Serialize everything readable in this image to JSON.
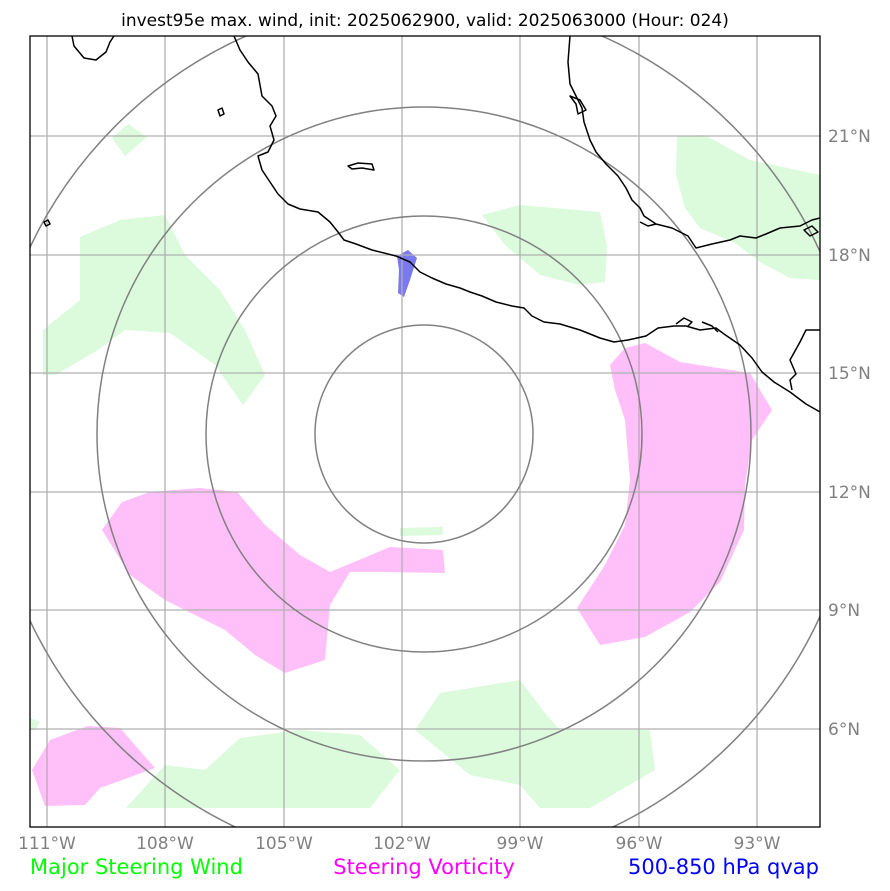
{
  "title": "invest95e max. wind, init: 2025062900, valid: 2025063000 (Hour: 024)",
  "lon_ticks": [
    "111°W",
    "108°W",
    "105°W",
    "102°W",
    "99°W",
    "96°W",
    "93°W"
  ],
  "lat_ticks": [
    "21°N",
    "18°N",
    "15°N",
    "12°N",
    "9°N",
    "6°N"
  ],
  "legend": {
    "steering_wind": "Major Steering Wind",
    "steering_vorticity": "Steering Vorticity",
    "qvap": "500-850 hPa qvap"
  },
  "colors": {
    "steering_wind": "#00ff00",
    "steering_vorticity": "#ff00ff",
    "qvap": "#0000ff",
    "wind_fill": "#dcfadc",
    "vorticity_fill": "#ffbff8",
    "qvap_fill": "#7a7aee",
    "grid": "#b0b0b0",
    "range_rings": "#808080",
    "coastline": "#000000"
  },
  "map": {
    "lon_range": [
      -111.5,
      -91.5
    ],
    "lat_range": [
      3.5,
      23.5
    ],
    "range_rings": 4
  }
}
